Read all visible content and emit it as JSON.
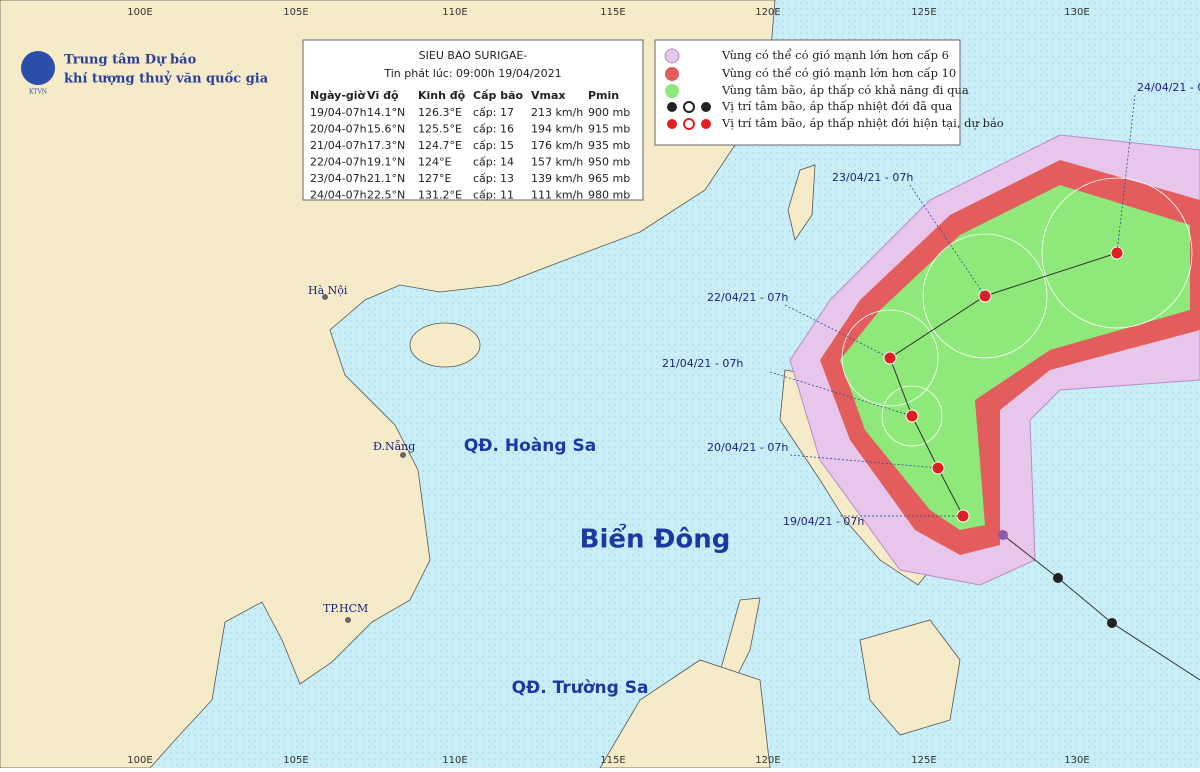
{
  "longitudes_top": [
    "100E",
    "105E",
    "110E",
    "115E",
    "120E",
    "125E",
    "130E"
  ],
  "longitudes_bottom": [
    "100E",
    "105E",
    "110E",
    "115E",
    "120E",
    "125E",
    "130E"
  ],
  "agency": {
    "logo": "KTVN",
    "line1": "Trung tâm Dự báo",
    "line2": "khí tượng thuỷ văn quốc gia"
  },
  "bulletin": {
    "title": "SIEU BAO SURIGAE-",
    "issued": "Tin phát lúc: 09:00h 19/04/2021",
    "header": [
      "Ngày-giờ",
      "Vĩ độ",
      "Kinh độ",
      "Cấp bão",
      "Vmax",
      "Pmin"
    ],
    "rows": [
      [
        "19/04-07h",
        "14.1°N",
        "126.3°E",
        "cấp: 17",
        "213 km/h",
        "900 mb"
      ],
      [
        "20/04-07h",
        "15.6°N",
        "125.5°E",
        "cấp: 16",
        "194 km/h",
        "915 mb"
      ],
      [
        "21/04-07h",
        "17.3°N",
        "124.7°E",
        "cấp: 15",
        "176 km/h",
        "935 mb"
      ],
      [
        "22/04-07h",
        "19.1°N",
        "124°E",
        "cấp: 14",
        "157 km/h",
        "950 mb"
      ],
      [
        "23/04-07h",
        "21.1°N",
        "127°E",
        "cấp: 13",
        "139 km/h",
        "965 mb"
      ],
      [
        "24/04-07h",
        "22.5°N",
        "131.2°E",
        "cấp: 11",
        "111 km/h",
        "980 mb"
      ]
    ]
  },
  "legend": [
    "Vùng có thể có gió mạnh lớn hơn cấp 6",
    "Vùng có thể có gió mạnh lớn hơn cấp 10",
    "Vùng tâm bão, áp thấp có khả năng đi qua",
    "Vị trí tâm bão, áp thấp nhiệt đới đã qua",
    "Vị trí tâm bão, áp thấp nhiệt đới hiện tại, dự báo"
  ],
  "places": {
    "hanoi": "Hà Nội",
    "danang": "Đ.Nẵng",
    "hcm": "TP.HCM",
    "hoang_sa": "QĐ. Hoàng Sa",
    "truong_sa": "QĐ. Trường Sa",
    "sea": "Biển Đông"
  },
  "track_labels": [
    "19/04/21 - 07h",
    "20/04/21 - 07h",
    "21/04/21 - 07h",
    "22/04/21 - 07h",
    "23/04/21 - 07h",
    "24/04/21 - 0"
  ]
}
